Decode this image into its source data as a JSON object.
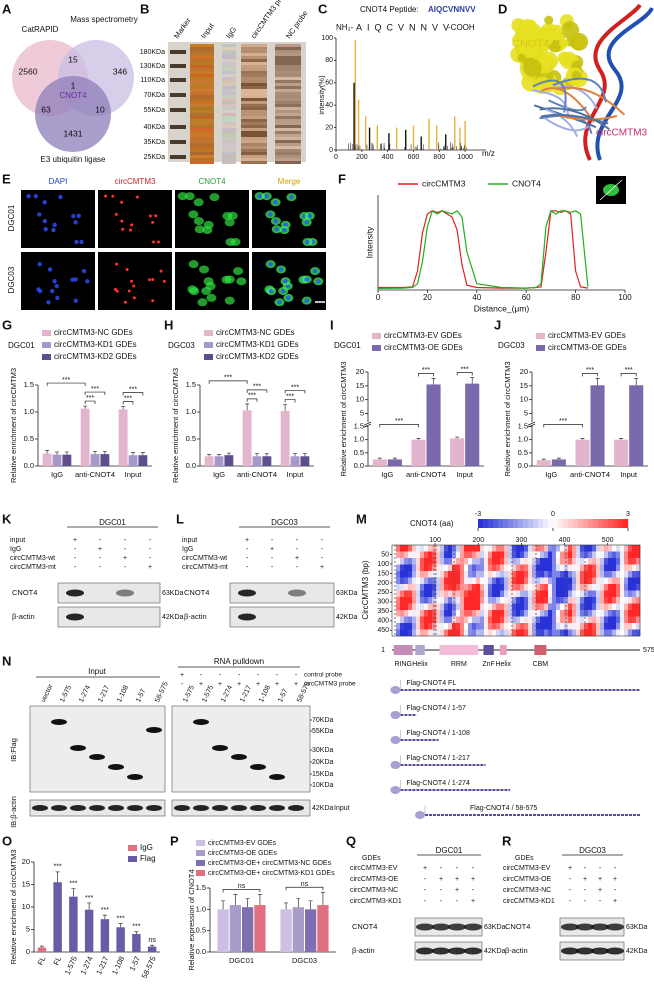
{
  "panels": {
    "letters": [
      "A",
      "B",
      "C",
      "D",
      "E",
      "F",
      "G",
      "H",
      "I",
      "J",
      "K",
      "L",
      "M",
      "N",
      "O",
      "P",
      "Q",
      "R"
    ]
  },
  "venn": {
    "sets": [
      "CatRAPID",
      "Mass spectrometry",
      "E3 ubiquitin ligase"
    ],
    "counts": [
      2560,
      15,
      346,
      1,
      63,
      10,
      1431
    ],
    "center": "CNOT4"
  },
  "gel": {
    "lanes": [
      "Marker",
      "Input",
      "IgG",
      "circCMTM3 probe",
      "NC probe"
    ],
    "markers": [
      "180KDa",
      "130KDa",
      "110KDa",
      "70KDa",
      "55KDa",
      "40KDa",
      "35KDa",
      "25KDa"
    ]
  },
  "ms": {
    "peptide_title": "CNOT4 Peptide:",
    "peptide": "AIQCVNNVV",
    "nterm": "NH₂-",
    "cterm": "-COOH",
    "ylabel": "intensity(%)",
    "xlabel": "m/z",
    "ylim": [
      0,
      100
    ],
    "xlim": [
      0,
      1100
    ],
    "yticks": [
      0,
      20,
      40,
      60,
      80,
      100
    ],
    "xticks": [
      0,
      200,
      400,
      600,
      800,
      1000
    ]
  },
  "structure": {
    "protein": "CNOT4",
    "rna": "circCMTM3"
  },
  "if": {
    "channels": [
      "DAPI",
      "circCMTM3",
      "CNOT4",
      "Merge"
    ],
    "rows": [
      "DGC01",
      "DGC03"
    ]
  },
  "chart_data": [
    {
      "type": "line",
      "xlabel": "Distance_(μm)",
      "ylabel": "Intensity",
      "xlim": [
        0,
        100
      ],
      "xticks": [
        0,
        20,
        40,
        60,
        80,
        100
      ],
      "ylim": [
        0,
        300
      ],
      "x": [
        0,
        10,
        14,
        16,
        18,
        20,
        22,
        24,
        26,
        28,
        30,
        32,
        34,
        36,
        40,
        50,
        60,
        64,
        66,
        68,
        70,
        72,
        74,
        76,
        78,
        80,
        82,
        85
      ],
      "series": [
        {
          "name": "circCMTM3",
          "color": "#e02020",
          "values": [
            8,
            8,
            10,
            60,
            180,
            240,
            250,
            245,
            250,
            240,
            230,
            190,
            80,
            15,
            8,
            6,
            6,
            8,
            10,
            120,
            250,
            250,
            245,
            250,
            240,
            60,
            10,
            6
          ]
        },
        {
          "name": "CNOT4",
          "color": "#20b020",
          "values": [
            5,
            6,
            8,
            20,
            90,
            200,
            250,
            240,
            250,
            245,
            240,
            250,
            230,
            120,
            20,
            8,
            6,
            8,
            20,
            200,
            250,
            240,
            250,
            250,
            245,
            250,
            240,
            10
          ]
        }
      ]
    },
    {
      "type": "bar",
      "subtitle": "DGC01",
      "ylabel": "Relative enrichment of circCMTM3",
      "categories": [
        "IgG",
        "anti-CNOT4",
        "Input"
      ],
      "ylim": [
        0,
        1.5
      ],
      "yticks": [
        {
          "value": 0,
          "label": "0.0"
        },
        {
          "value": 0.5,
          "label": "0.5"
        },
        {
          "value": 1,
          "label": "1.0"
        },
        {
          "value": 1.5,
          "label": "1.5"
        }
      ],
      "series": [
        {
          "name": "circCMTM3-NC GDEs",
          "color": "#e3b5cc",
          "values": [
            0.23,
            1.06,
            1.05
          ],
          "errors": [
            0.06,
            0.05,
            0.05
          ]
        },
        {
          "name": "circCMTM3-KD1 GDEs",
          "color": "#a897c9",
          "values": [
            0.21,
            0.22,
            0.2
          ],
          "errors": [
            0.05,
            0.05,
            0.05
          ]
        },
        {
          "name": "circCMTM3-KD2 GDEs",
          "color": "#5e4e8c",
          "values": [
            0.21,
            0.22,
            0.2
          ],
          "errors": [
            0.05,
            0.05,
            0.05
          ]
        }
      ],
      "annotations": [
        "***",
        "***",
        "***",
        "***",
        "***"
      ]
    },
    {
      "type": "bar",
      "subtitle": "DGC03",
      "ylabel": "Relative enrichment of circCMTM3",
      "categories": [
        "IgG",
        "anti-CNOT4",
        "Input"
      ],
      "ylim": [
        0,
        1.5
      ],
      "yticks": [
        {
          "value": 0,
          "label": "0.0"
        },
        {
          "value": 0.5,
          "label": "0.5"
        },
        {
          "value": 1,
          "label": "1.0"
        },
        {
          "value": 1.5,
          "label": "1.5"
        }
      ],
      "series": [
        {
          "name": "circCMTM3-NC GDEs",
          "color": "#e3b5cc",
          "values": [
            0.18,
            1.03,
            1.02
          ],
          "errors": [
            0.03,
            0.12,
            0.12
          ]
        },
        {
          "name": "circCMTM3-KD1 GDEs",
          "color": "#a897c9",
          "values": [
            0.18,
            0.18,
            0.18
          ],
          "errors": [
            0.03,
            0.05,
            0.05
          ]
        },
        {
          "name": "circCMTM3-KD2 GDEs",
          "color": "#5e4e8c",
          "values": [
            0.2,
            0.18,
            0.18
          ],
          "errors": [
            0.04,
            0.05,
            0.05
          ]
        }
      ],
      "annotations": [
        "***",
        "***",
        "***",
        "***",
        "***"
      ]
    },
    {
      "type": "bar",
      "subtitle": "DGC01",
      "ylabel": "Relative enrichment of circCMTM3",
      "categories": [
        "IgG",
        "anti-CNOT4",
        "Input"
      ],
      "ylim": [
        0,
        20
      ],
      "ybreak": [
        1.5,
        2
      ],
      "yticks": [
        {
          "value": 0,
          "label": "0.0"
        },
        {
          "value": 0.5,
          "label": "0.5"
        },
        {
          "value": 1,
          "label": "1.0"
        },
        {
          "value": 1.5,
          "label": "1.5"
        },
        5,
        10,
        15,
        20
      ],
      "series": [
        {
          "name": "circCMTM3-EV GDEs",
          "color": "#e3b5cc",
          "values": [
            0.25,
            1.0,
            1.05
          ],
          "errors": [
            0.05,
            0.05,
            0.05
          ]
        },
        {
          "name": "circCMTM3-OE GDEs",
          "color": "#7a69ab",
          "values": [
            0.25,
            15.5,
            15.8
          ],
          "errors": [
            0.05,
            2.2,
            2.2
          ]
        }
      ],
      "annotations": [
        "***",
        "***",
        "***"
      ]
    },
    {
      "type": "bar",
      "subtitle": "DGC03",
      "ylabel": "Relative enrichment of circCMTM3",
      "categories": [
        "IgG",
        "anti-CNOT4",
        "Input"
      ],
      "ylim": [
        0,
        20
      ],
      "ybreak": [
        1.5,
        2
      ],
      "yticks": [
        {
          "value": 0,
          "label": "0.0"
        },
        {
          "value": 0.5,
          "label": "0.5"
        },
        {
          "value": 1,
          "label": "1.0"
        },
        {
          "value": 1.5,
          "label": "1.5"
        },
        5,
        10,
        15,
        20
      ],
      "series": [
        {
          "name": "circCMTM3-EV GDEs",
          "color": "#e3b5cc",
          "values": [
            0.22,
            1.0,
            1.0
          ],
          "errors": [
            0.04,
            0.05,
            0.05
          ]
        },
        {
          "name": "circCMTM3-OE GDEs",
          "color": "#7a69ab",
          "values": [
            0.25,
            15.2,
            15.2
          ],
          "errors": [
            0.05,
            2.5,
            2.5
          ]
        }
      ],
      "annotations": [
        "***",
        "***",
        "***"
      ]
    },
    {
      "type": "bar",
      "ylabel": "Relative enrichment of circCMTM3",
      "legend": "top-right",
      "categories": [
        "FL",
        "FL",
        "1-575",
        "1-274",
        "1-217",
        "1-108",
        "1-57",
        "58-575"
      ],
      "ylim": [
        0,
        20
      ],
      "yticks": [
        0,
        5,
        10,
        15,
        20
      ],
      "series": [
        {
          "name": "IgG",
          "color": "#e0707f",
          "values": [
            1.0,
            null,
            null,
            null,
            null,
            null,
            null,
            null
          ],
          "errors": [
            0.3,
            null,
            null,
            null,
            null,
            null,
            null,
            null
          ]
        },
        {
          "name": "Flag",
          "color": "#6a5aa8",
          "values": [
            null,
            15.5,
            12.3,
            9.4,
            7.3,
            5.5,
            4.0,
            1.2
          ],
          "errors": [
            null,
            2.3,
            1.8,
            1.5,
            0.9,
            0.8,
            0.5,
            0.3
          ]
        }
      ],
      "annotations": [
        "***",
        "***",
        "***",
        "***",
        "***",
        "***",
        "ns"
      ]
    },
    {
      "type": "bar",
      "ylabel": "Relative expression of CNOT4",
      "categories": [
        "DGC01",
        "DGC03"
      ],
      "ylim": [
        0,
        1.5
      ],
      "yticks": [
        {
          "value": 0,
          "label": "0.0"
        },
        {
          "value": 0.5,
          "label": "0.5"
        },
        {
          "value": 1,
          "label": "1.0"
        },
        {
          "value": 1.5,
          "label": "1.5"
        }
      ],
      "series": [
        {
          "name": "circCMTM3-EV GDEs",
          "color": "#cdbfe0",
          "values": [
            1.0,
            1.0
          ],
          "errors": [
            0.2,
            0.15
          ]
        },
        {
          "name": "circCMTM3-OE GDEs",
          "color": "#a99cc9",
          "values": [
            1.1,
            1.05
          ],
          "errors": [
            0.25,
            0.2
          ]
        },
        {
          "name": "circCMTM3-OE+ circCMTM3-NC GDEs",
          "color": "#7e6fb0",
          "values": [
            1.05,
            1.0
          ],
          "errors": [
            0.2,
            0.2
          ]
        },
        {
          "name": "circCMTM3-OE+ circCMTM3-KD1 GDEs",
          "color": "#e0707f",
          "values": [
            1.1,
            1.1
          ],
          "errors": [
            0.25,
            0.3
          ]
        }
      ],
      "annotations": [
        "ns",
        "ns"
      ]
    }
  ],
  "blots": [
    {
      "cell": "DGC01",
      "rows": [
        "input",
        "IgG",
        "circCMTM3-wt",
        "circCMTM3-mt"
      ],
      "signs": [
        [
          "+",
          "-",
          "-",
          "-"
        ],
        [
          "-",
          "+",
          "-",
          "-"
        ],
        [
          "-",
          "-",
          "+",
          "-"
        ],
        [
          "-",
          "-",
          "-",
          "+"
        ]
      ],
      "proteins": [
        "CNOT4",
        "β-actin"
      ],
      "sizes": [
        "63KDa",
        "42KDa"
      ]
    },
    {
      "cell": "DGC03",
      "rows": [
        "input",
        "IgG",
        "circCMTM3-wt",
        "circCMTM3-mt"
      ],
      "signs": [
        [
          "+",
          "-",
          "-",
          "-"
        ],
        [
          "-",
          "+",
          "-",
          "-"
        ],
        [
          "-",
          "-",
          "+",
          "-"
        ],
        [
          "-",
          "-",
          "-",
          "+"
        ]
      ],
      "proteins": [
        "CNOT4",
        "β-actin"
      ],
      "sizes": [
        "63KDa",
        "42KDa"
      ]
    },
    {
      "header": "GDEs",
      "cell": "DGC01",
      "rows": [
        "circCMTM3-EV",
        "circCMTM3-OE",
        "circCMTM3-NC",
        "circCMTM3-KD1"
      ],
      "signs": [
        [
          "+",
          "-",
          "-",
          "-"
        ],
        [
          "-",
          "+",
          "+",
          "+"
        ],
        [
          "-",
          "-",
          "+",
          "-"
        ],
        [
          "-",
          "-",
          "-",
          "+"
        ]
      ],
      "proteins": [
        "CNOT4",
        "β-actin"
      ],
      "sizes": [
        "63KDa",
        "42KDa"
      ]
    },
    {
      "header": "GDEs",
      "cell": "DGC03",
      "rows": [
        "circCMTM3-EV",
        "circCMTM3-OE",
        "circCMTM3-NC",
        "circCMTM3-KD1"
      ],
      "signs": [
        [
          "+",
          "-",
          "-",
          "-"
        ],
        [
          "-",
          "+",
          "+",
          "+"
        ],
        [
          "-",
          "-",
          "+",
          "-"
        ],
        [
          "-",
          "-",
          "-",
          "+"
        ]
      ],
      "proteins": [
        "CNOT4",
        "β-actin"
      ],
      "sizes": [
        "63KDa",
        "42KDa"
      ]
    }
  ],
  "heatmap": {
    "title": "CNOT4 (aa)",
    "scale": [
      -3,
      0,
      3
    ],
    "xticks": [
      100,
      200,
      300,
      400,
      500
    ],
    "yticks": [
      50,
      100,
      150,
      200,
      250,
      300,
      350,
      400,
      450
    ],
    "ylabel": "CircCMTM3 (bp)"
  },
  "domains": {
    "start": "1",
    "end": "575",
    "names": [
      "RING",
      "Helix",
      "RRM",
      "ZnF",
      "Helix",
      "CBM"
    ],
    "constructs": [
      "Flag-CNOT4 FL",
      "Flag-CNOT4 / 1-57",
      "Flag-CNOT4 / 1-108",
      "Flag-CNOT4 / 1-217",
      "Flag-CNOT4 / 1-274",
      "Flag-CNOT4 / 58-575"
    ]
  },
  "pulldown": {
    "input_title": "Input",
    "pulldown_title": "RNA pulldown",
    "lanes_input": [
      "vector",
      "1-575",
      "1-274",
      "1-217",
      "1-108",
      "1-57",
      "58-575"
    ],
    "lanes_pd": [
      "1-575",
      "1-575",
      "1-274",
      "1-217",
      "1-108",
      "1-57",
      "58-575"
    ],
    "probes": [
      "control probe",
      "circCMTM3 probe"
    ],
    "probe_signs": [
      [
        "+",
        "-",
        "-",
        "-",
        "-",
        "-",
        "-"
      ],
      [
        "-",
        "+",
        "+",
        "+",
        "+",
        "+",
        "+"
      ]
    ],
    "sizes": [
      "70KDa",
      "55KDa",
      "30KDa",
      "20KDa",
      "15KDa",
      "10KDa"
    ],
    "ib": [
      "IB:Flag",
      "IB:β-actin"
    ],
    "actin_size": "42KDa",
    "actin_tag": "Input"
  }
}
